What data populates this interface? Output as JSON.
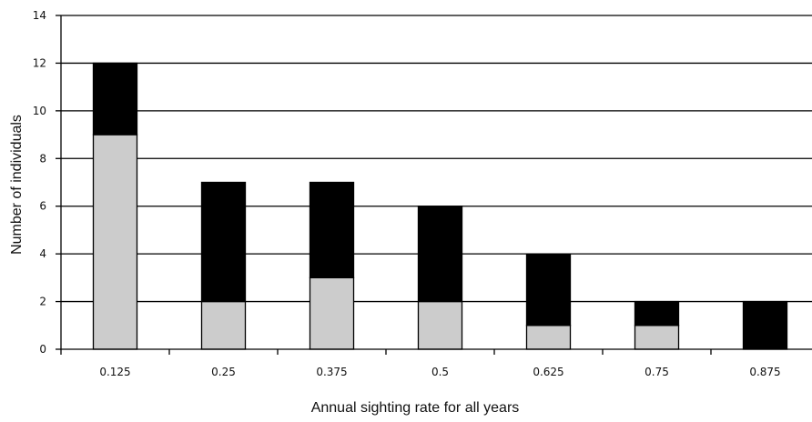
{
  "chart_data": {
    "type": "bar",
    "stacked": true,
    "categories": [
      "0.125",
      "0.25",
      "0.375",
      "0.5",
      "0.625",
      "0.75",
      "0.875"
    ],
    "series": [
      {
        "values": [
          9,
          2,
          3,
          2,
          1,
          1,
          0
        ],
        "color": "#cccccc"
      },
      {
        "values": [
          3,
          5,
          4,
          4,
          3,
          1,
          2
        ],
        "color": "#000000"
      }
    ],
    "title": "",
    "xlabel": "Annual sighting rate for all years",
    "ylabel": "Number of individuals",
    "ylim": [
      0,
      14
    ],
    "yticks": [
      "0",
      "2",
      "4",
      "6",
      "8",
      "10",
      "12",
      "14"
    ],
    "grid": true
  }
}
